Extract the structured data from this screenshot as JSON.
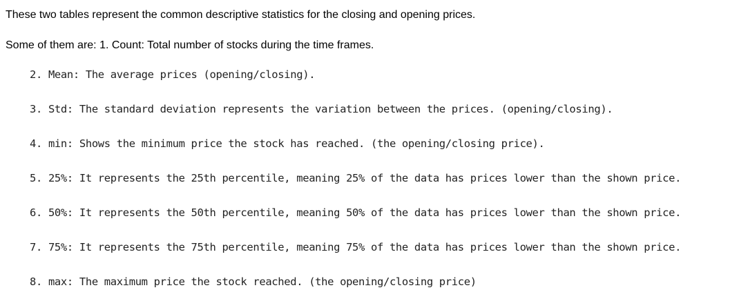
{
  "intro": "These two tables represent the common descriptive statistics for the closing and opening prices.",
  "lead": "Some of them are: 1. Count: Total number of stocks during the time frames.",
  "items": [
    {
      "num": "2.",
      "text": "Mean: The average prices (opening/closing)."
    },
    {
      "num": "3.",
      "text": "Std: The standard deviation represents the variation between the prices. (opening/closing)."
    },
    {
      "num": "4.",
      "text": "min: Shows the minimum price the stock has reached. (the opening/closing price)."
    },
    {
      "num": "5.",
      "text": "25%: It represents the 25th percentile, meaning 25% of the data has prices lower than the shown price."
    },
    {
      "num": "6.",
      "text": "50%: It represents the 50th percentile, meaning 50% of the data has prices lower than the shown price."
    },
    {
      "num": "7.",
      "text": "75%: It represents the 75th percentile, meaning 75% of the data has prices lower than the shown price."
    },
    {
      "num": "8.",
      "text": "max: The maximum price the stock reached. (the opening/closing price)"
    }
  ]
}
